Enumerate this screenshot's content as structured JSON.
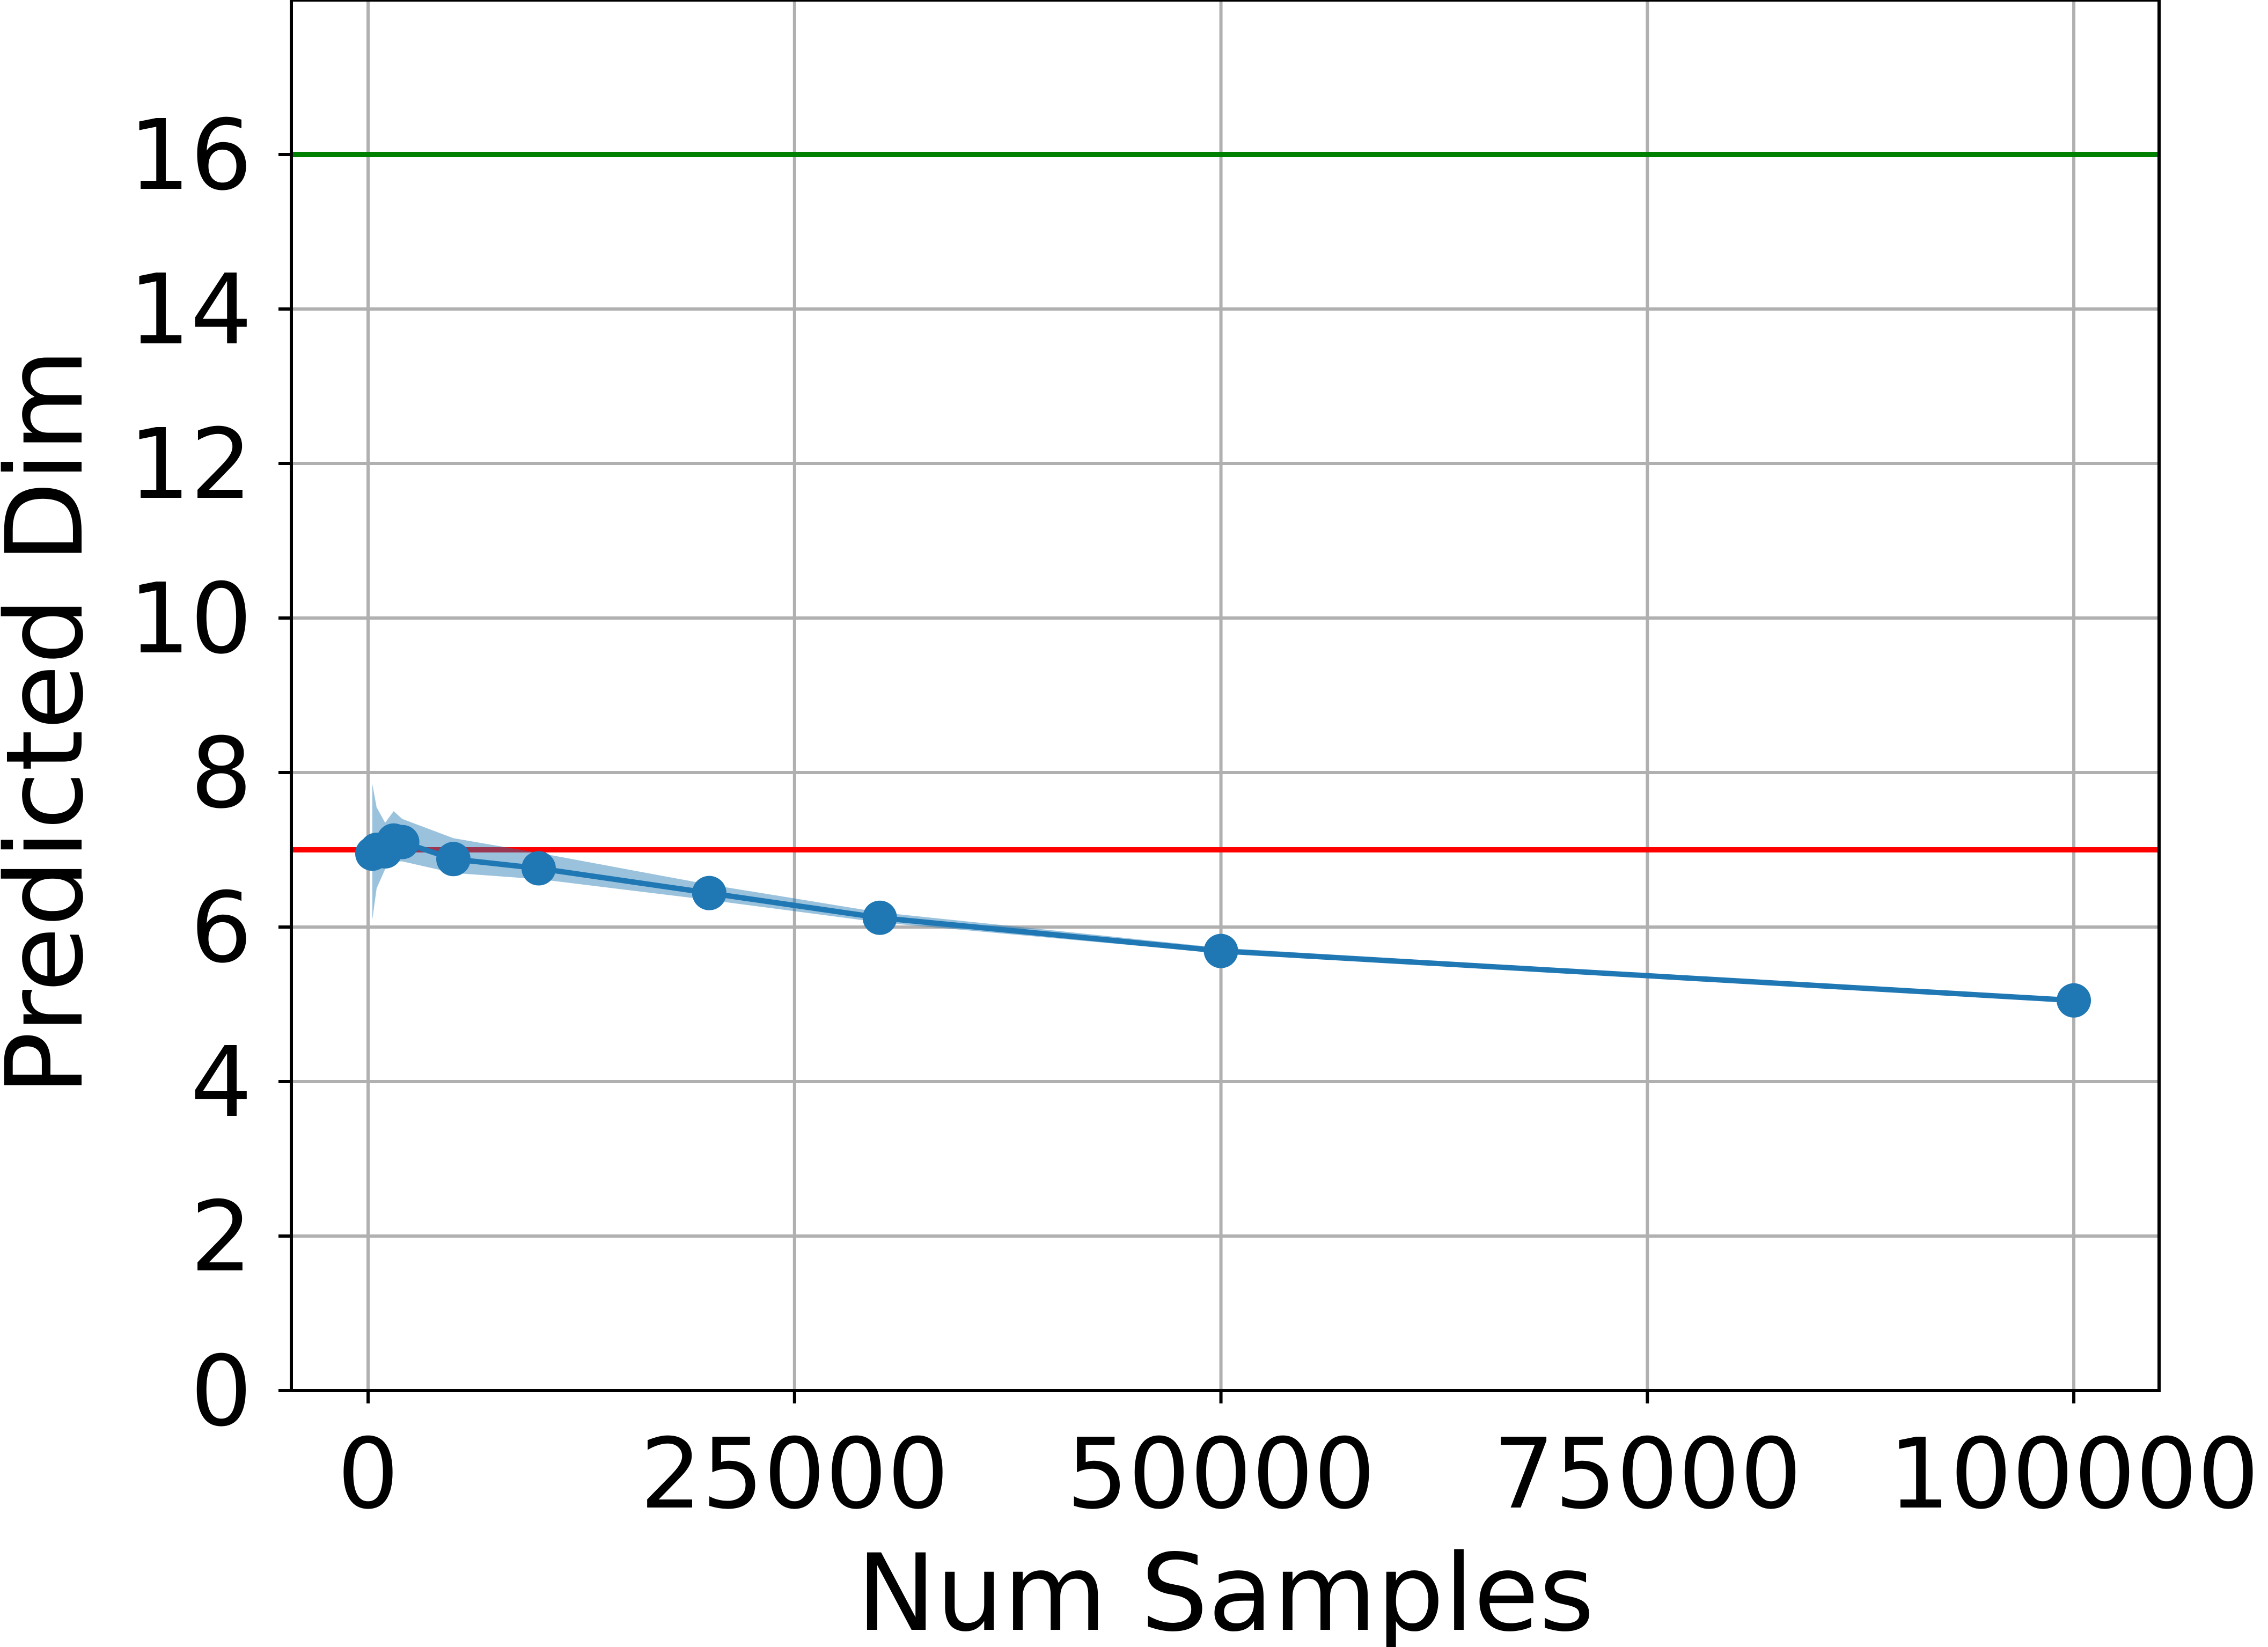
{
  "chart_data": {
    "type": "line",
    "xlabel": "Num Samples",
    "ylabel": "Predicted Dim",
    "xlim": [
      -4500,
      105000
    ],
    "ylim": [
      0,
      18
    ],
    "grid": true,
    "xticks": [
      0,
      25000,
      50000,
      75000,
      100000
    ],
    "xtick_labels": [
      "0",
      "25000",
      "50000",
      "75000",
      "100000"
    ],
    "yticks": [
      0,
      2,
      4,
      6,
      8,
      10,
      12,
      14,
      16
    ],
    "ytick_labels": [
      "0",
      "2",
      "4",
      "6",
      "8",
      "10",
      "12",
      "14",
      "16"
    ],
    "series": [
      {
        "x": [
          250,
          500,
          1000,
          1500,
          2000,
          5000,
          10000,
          20000,
          30000,
          50000,
          100000
        ],
        "y": [
          6.95,
          7.0,
          6.98,
          7.12,
          7.1,
          6.88,
          6.76,
          6.44,
          6.12,
          5.69,
          5.05
        ],
        "lower": [
          6.1,
          6.5,
          6.75,
          6.85,
          6.85,
          6.7,
          6.62,
          6.35,
          6.06,
          5.66,
          5.03
        ],
        "upper": [
          7.85,
          7.55,
          7.35,
          7.5,
          7.4,
          7.15,
          6.96,
          6.55,
          6.19,
          5.73,
          5.07
        ],
        "color": "#1f77b4",
        "band_color": "#1f77b4"
      }
    ],
    "reference_lines": [
      {
        "y": 16,
        "color": "#008000"
      },
      {
        "y": 7,
        "color": "#ff0000"
      }
    ]
  }
}
